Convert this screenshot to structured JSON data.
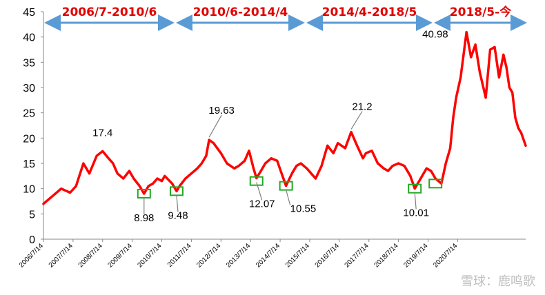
{
  "chart_data": {
    "type": "line",
    "title": "",
    "xlabel": "",
    "ylabel": "",
    "ylim": [
      0,
      45
    ],
    "yticks": [
      0,
      5,
      10,
      15,
      20,
      25,
      30,
      35,
      40,
      45
    ],
    "xticks": [
      "2006/7/14",
      "2007/7/14",
      "2008/7/14",
      "2009/7/14",
      "2010/7/14",
      "2011/7/14",
      "2012/7/14",
      "2013/7/14",
      "2014/7/14",
      "2015/7/14",
      "2016/7/14",
      "2017/7/14",
      "2018/7/14",
      "2019/7/14",
      "2020/7/14"
    ],
    "grid": false,
    "legend": "none",
    "line_color": "#ff0000",
    "series": [
      {
        "x": [
          2006.0,
          2006.3,
          2006.6,
          2006.9,
          2007.1,
          2007.35,
          2007.55,
          2007.8,
          2008.0,
          2008.2,
          2008.35,
          2008.5,
          2008.7,
          2008.9,
          2009.05,
          2009.25,
          2009.4,
          2009.55,
          2009.7,
          2009.85,
          2010.0,
          2010.1,
          2010.35,
          2010.5,
          2010.6,
          2010.8,
          2011.0,
          2011.2,
          2011.35,
          2011.5,
          2011.6,
          2011.75,
          2012.0,
          2012.2,
          2012.45,
          2012.6,
          2012.8,
          2012.95,
          2013.1,
          2013.2,
          2013.35,
          2013.5,
          2013.7,
          2013.9,
          2014.05,
          2014.2,
          2014.4,
          2014.55,
          2014.7,
          2014.9,
          2015.05,
          2015.2,
          2015.4,
          2015.6,
          2015.8,
          2015.95,
          2016.2,
          2016.4,
          2016.6,
          2016.8,
          2016.9,
          2017.1,
          2017.3,
          2017.5,
          2017.65,
          2017.8,
          2018.0,
          2018.2,
          2018.4,
          2018.55,
          2018.7,
          2018.95,
          2019.1,
          2019.25,
          2019.45,
          2019.6,
          2019.75,
          2019.85,
          2019.95,
          2020.1,
          2020.3,
          2020.45,
          2020.6,
          2020.75,
          2020.95,
          2021.1,
          2021.25,
          2021.4,
          2021.55,
          2021.65,
          2021.75,
          2021.85,
          2021.95,
          2022.05,
          2022.15,
          2022.3
        ],
        "y": [
          7.0,
          8.5,
          10.0,
          9.2,
          10.5,
          15.0,
          13.0,
          16.5,
          17.4,
          16.0,
          15.0,
          13.0,
          12.0,
          13.5,
          12.0,
          10.5,
          9.0,
          10.5,
          11.0,
          12.0,
          11.5,
          12.5,
          11.0,
          9.5,
          10.5,
          12.0,
          13.0,
          14.0,
          15.0,
          16.5,
          19.63,
          19.0,
          17.0,
          15.0,
          14.0,
          14.5,
          15.5,
          17.5,
          14.0,
          12.07,
          13.5,
          15.0,
          16.0,
          15.5,
          13.0,
          10.55,
          13.0,
          14.5,
          15.0,
          14.0,
          13.0,
          12.0,
          14.5,
          18.5,
          17.0,
          19.0,
          18.0,
          21.2,
          18.5,
          16.0,
          17.0,
          17.5,
          15.0,
          14.0,
          13.5,
          14.5,
          15.0,
          14.5,
          12.5,
          10.01,
          11.5,
          14.0,
          13.5,
          12.0,
          11.0,
          15.0,
          18.0,
          24.0,
          28.0,
          32.0,
          40.98,
          36.0,
          38.5,
          33.0,
          28.0,
          37.5,
          38.0,
          32.0,
          36.5,
          34.0,
          30.0,
          29.0,
          24.0,
          22.0,
          21.0,
          18.5
        ]
      }
    ],
    "annotations": [
      {
        "label": "17.4",
        "x": 2008.0,
        "y": 17.4
      },
      {
        "label": "8.98",
        "x": 2009.4,
        "y": 9.0
      },
      {
        "label": "9.48",
        "x": 2010.5,
        "y": 9.5
      },
      {
        "label": "19.63",
        "x": 2011.6,
        "y": 19.63
      },
      {
        "label": "12.07",
        "x": 2013.2,
        "y": 12.07
      },
      {
        "label": "10.55",
        "x": 2014.2,
        "y": 10.55
      },
      {
        "label": "21.2",
        "x": 2016.4,
        "y": 21.2
      },
      {
        "label": "10.01",
        "x": 2018.55,
        "y": 10.01
      },
      {
        "label": "40.98",
        "x": 2020.1,
        "y": 40.98
      }
    ],
    "highlight_boxes": [
      {
        "x": 2009.4,
        "y": 9.0
      },
      {
        "x": 2010.5,
        "y": 9.5
      },
      {
        "x": 2013.2,
        "y": 11.5
      },
      {
        "x": 2014.2,
        "y": 10.55
      },
      {
        "x": 2018.55,
        "y": 10.0
      },
      {
        "x": 2019.25,
        "y": 11.0
      }
    ],
    "periods": [
      {
        "label": "2006/7-2010/6"
      },
      {
        "label": "2010/6-2014/4"
      },
      {
        "label": "2014/4-2018/5"
      },
      {
        "label": "2018/5-今"
      }
    ],
    "period_color": "#e00000",
    "arrow_color": "#5b9bd5",
    "box_color": "#22aa22"
  },
  "watermark": "雪球：鹿鸣歌"
}
